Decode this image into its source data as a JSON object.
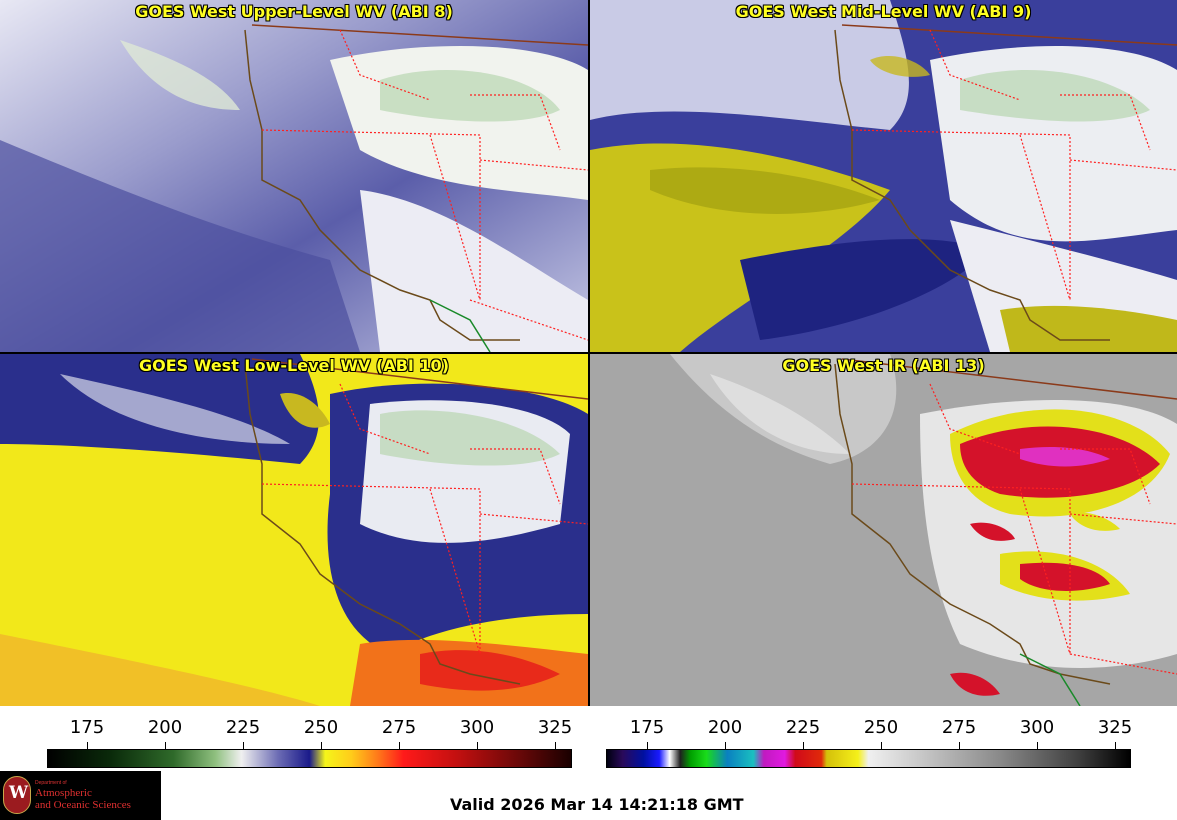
{
  "panels": [
    {
      "title": "GOES West Upper-Level WV (ABI 8)"
    },
    {
      "title": "GOES West Mid-Level WV (ABI 9)"
    },
    {
      "title": "GOES West Low-Level WV (ABI 10)"
    },
    {
      "title": "GOES West IR (ABI 13)"
    }
  ],
  "colorbars": [
    {
      "name": "water-vapor-temperature-scale",
      "ticks": [
        "175",
        "200",
        "225",
        "250",
        "275",
        "300",
        "325"
      ]
    },
    {
      "name": "ir-temperature-scale",
      "ticks": [
        "175",
        "200",
        "225",
        "250",
        "275",
        "300",
        "325"
      ]
    }
  ],
  "valid_time": "Valid 2026 Mar 14 14:21:18 GMT",
  "logo": {
    "department": "Department of",
    "line1": "Atmospheric",
    "line2": "and Oceanic Sciences"
  },
  "colors": {
    "title_text": "#ffff22",
    "state_borders": "#ff2020",
    "coastline": "#6b4a1a"
  }
}
